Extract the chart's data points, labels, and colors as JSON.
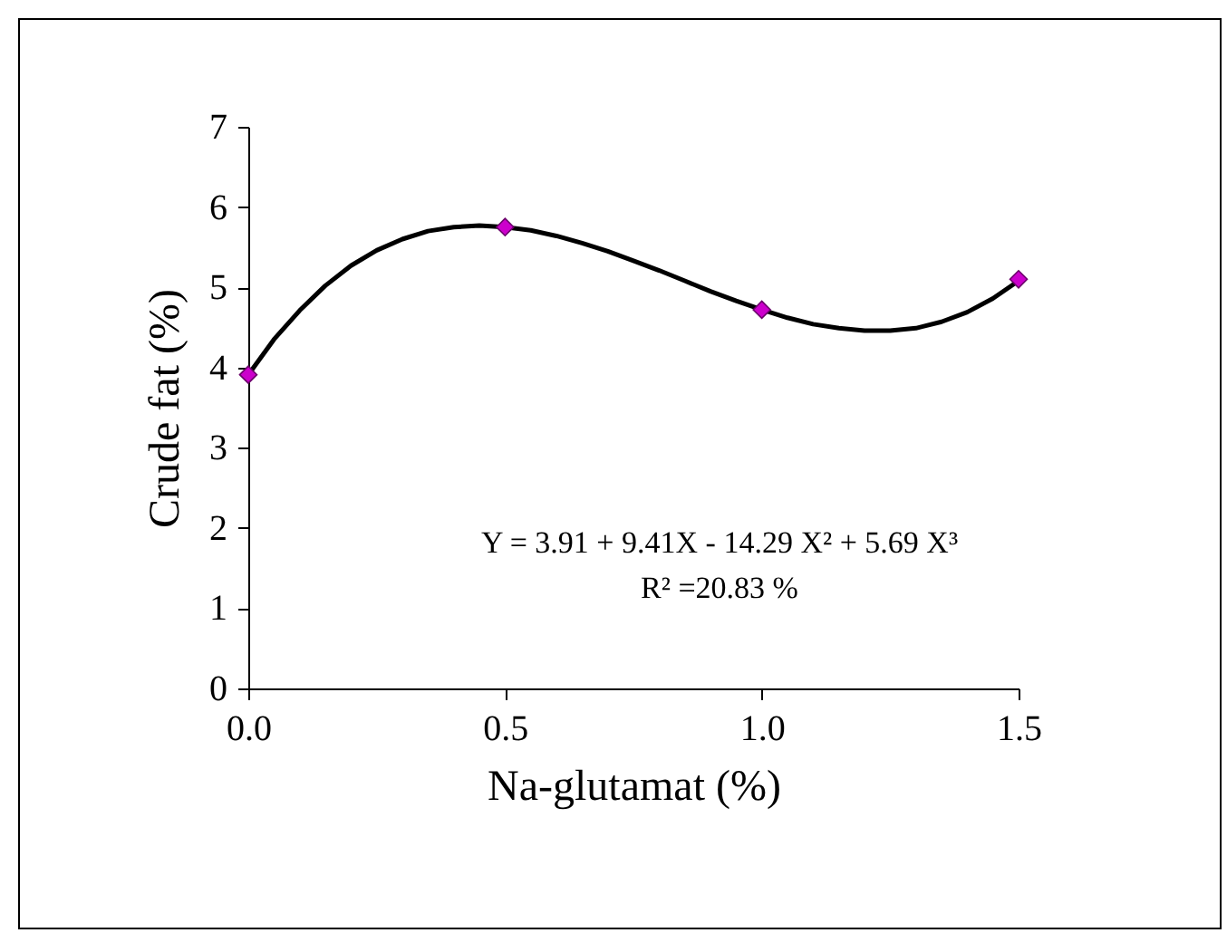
{
  "chart_data": {
    "type": "scatter",
    "xlabel": "Na-glutamat (%)",
    "ylabel": "Crude fat (%)",
    "xlim": [
      0,
      1.5
    ],
    "ylim": [
      0,
      7
    ],
    "xticks": [
      {
        "value": 0,
        "label": "0.0"
      },
      0.5,
      {
        "value": 1,
        "label": "1.0"
      },
      1.5
    ],
    "yticks": [
      0,
      1,
      2,
      3,
      4,
      5,
      6,
      7
    ],
    "grid": false,
    "legend": false,
    "annotations": [
      "Y  = 3.91 + 9.41X  - 14.29 X²  + 5.69 X³",
      "R² =20.83 %"
    ],
    "series": [
      {
        "type": "line",
        "color": "#000000",
        "marker": "none",
        "line_style": "solid",
        "x": [
          0,
          0.05,
          0.1,
          0.15,
          0.2,
          0.25,
          0.3,
          0.35,
          0.4,
          0.45,
          0.5,
          0.55,
          0.6,
          0.65,
          0.7,
          0.75,
          0.8,
          0.85,
          0.9,
          0.95,
          1.0,
          1.05,
          1.1,
          1.15,
          1.2,
          1.25,
          1.3,
          1.35,
          1.4,
          1.45,
          1.5
        ],
        "values": [
          3.91,
          4.35,
          4.71,
          5.02,
          5.27,
          5.46,
          5.6,
          5.7,
          5.75,
          5.77,
          5.75,
          5.71,
          5.64,
          5.55,
          5.45,
          5.33,
          5.21,
          5.08,
          4.95,
          4.83,
          4.72,
          4.62,
          4.54,
          4.49,
          4.46,
          4.46,
          4.49,
          4.57,
          4.69,
          4.86,
          5.08
        ]
      },
      {
        "color": "#cc00cc",
        "marker": "diamond",
        "x": [
          0,
          0.5,
          1.0,
          1.5
        ],
        "values": [
          3.91,
          5.75,
          4.72,
          5.1
        ]
      }
    ]
  }
}
